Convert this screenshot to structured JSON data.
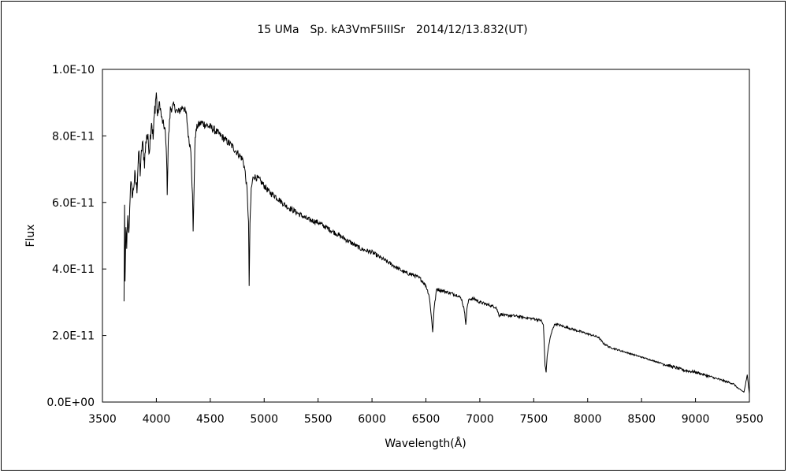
{
  "chart_data": {
    "type": "line",
    "title": "15 UMa　Sp. kA3VmF5IIISr　2014/12/13.832(UT)",
    "xlabel": "Wavelength(Å)",
    "ylabel": "Flux",
    "xlim": [
      3500,
      9500
    ],
    "ylim": [
      0,
      1e-10
    ],
    "xticks": [
      3500,
      4000,
      4500,
      5000,
      5500,
      6000,
      6500,
      7000,
      7500,
      8000,
      8500,
      9000,
      9500
    ],
    "yticks": [
      0,
      2e-11,
      4e-11,
      6e-11,
      8e-11,
      1e-10
    ],
    "xtick_labels": [
      "3500",
      "4000",
      "4500",
      "5000",
      "5500",
      "6000",
      "6500",
      "7000",
      "7500",
      "8000",
      "8500",
      "9000",
      "9500"
    ],
    "ytick_labels": [
      "0.0E+00",
      "2.0E-11",
      "4.0E-11",
      "6.0E-11",
      "8.0E-11",
      "1.0E-10"
    ],
    "grid": false,
    "legend": "none",
    "line_color": "#000000",
    "series": [
      {
        "x": [
          3700,
          3705,
          3710,
          3718,
          3725,
          3735,
          3745,
          3760,
          3780,
          3800,
          3820,
          3835,
          3850,
          3870,
          3890,
          3910,
          3935,
          3955,
          3970,
          3985,
          4000,
          4010,
          4030,
          4050,
          4080,
          4095,
          4101,
          4110,
          4130,
          4160,
          4200,
          4250,
          4280,
          4300,
          4320,
          4335,
          4341,
          4350,
          4360,
          4380,
          4420,
          4480,
          4530,
          4600,
          4700,
          4800,
          4820,
          4840,
          4855,
          4861,
          4868,
          4880,
          4900,
          4950,
          5000,
          5050,
          5100,
          5200,
          5300,
          5400,
          5500,
          5600,
          5700,
          5800,
          5900,
          6000,
          6100,
          6200,
          6300,
          6400,
          6450,
          6500,
          6530,
          6550,
          6563,
          6575,
          6600,
          6700,
          6800,
          6830,
          6860,
          6870,
          6880,
          6900,
          6950,
          7000,
          7100,
          7150,
          7180,
          7200,
          7230,
          7300,
          7400,
          7500,
          7570,
          7590,
          7605,
          7615,
          7625,
          7650,
          7680,
          7700,
          7800,
          7900,
          8000,
          8100,
          8150,
          8180,
          8200,
          8300,
          8400,
          8500,
          8600,
          8700,
          8800,
          8900,
          9000,
          9100,
          9200,
          9300,
          9350,
          9400,
          9450,
          9480,
          9500
        ],
        "y": [
          3e-11,
          6e-11,
          3.6e-11,
          5.2e-11,
          4.7e-11,
          5.5e-11,
          5e-11,
          6.6e-11,
          6.2e-11,
          6.8e-11,
          6.4e-11,
          7.5e-11,
          6.9e-11,
          7.8e-11,
          7.2e-11,
          8.1e-11,
          7.6e-11,
          8.5e-11,
          7.9e-11,
          8.8e-11,
          9.3e-11,
          8.6e-11,
          9e-11,
          8.5e-11,
          8.2e-11,
          7.4e-11,
          6.3e-11,
          7.8e-11,
          8.8e-11,
          8.9e-11,
          8.7e-11,
          8.9e-11,
          8.6e-11,
          7.9e-11,
          7.6e-11,
          6.2e-11,
          5.1e-11,
          6.5e-11,
          8e-11,
          8.3e-11,
          8.4e-11,
          8.3e-11,
          8.2e-11,
          8e-11,
          7.7e-11,
          7.3e-11,
          7e-11,
          6.4e-11,
          5.4e-11,
          3.5e-11,
          5.3e-11,
          6.4e-11,
          6.8e-11,
          6.7e-11,
          6.5e-11,
          6.3e-11,
          6.2e-11,
          5.9e-11,
          5.7e-11,
          5.5e-11,
          5.4e-11,
          5.2e-11,
          5e-11,
          4.8e-11,
          4.6e-11,
          4.5e-11,
          4.3e-11,
          4.1e-11,
          3.9e-11,
          3.8e-11,
          3.7e-11,
          3.5e-11,
          3.2e-11,
          2.6e-11,
          2.1e-11,
          2.8e-11,
          3.4e-11,
          3.3e-11,
          3.2e-11,
          3.1e-11,
          2.7e-11,
          2.3e-11,
          2.8e-11,
          3.1e-11,
          3.1e-11,
          3e-11,
          2.9e-11,
          2.85e-11,
          2.6e-11,
          2.65e-11,
          2.6e-11,
          2.6e-11,
          2.55e-11,
          2.5e-11,
          2.45e-11,
          2.3e-11,
          1.1e-11,
          9e-12,
          1.4e-11,
          1.9e-11,
          2.25e-11,
          2.35e-11,
          2.25e-11,
          2.15e-11,
          2.05e-11,
          1.95e-11,
          1.75e-11,
          1.7e-11,
          1.65e-11,
          1.55e-11,
          1.45e-11,
          1.35e-11,
          1.25e-11,
          1.15e-11,
          1.05e-11,
          9.5e-12,
          9e-12,
          8e-12,
          7e-12,
          6e-12,
          5.5e-12,
          4e-12,
          3e-12,
          8e-12,
          2.5e-12
        ]
      }
    ]
  }
}
